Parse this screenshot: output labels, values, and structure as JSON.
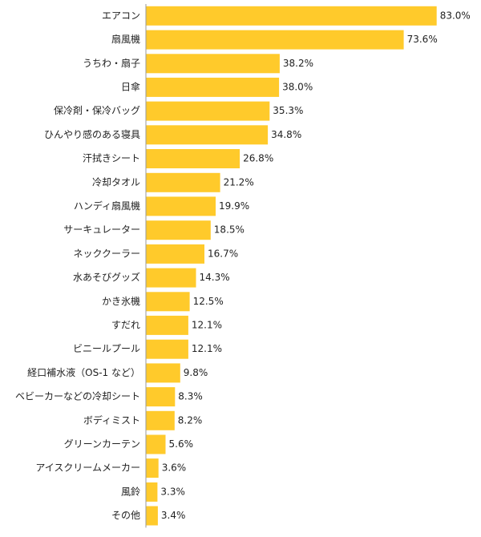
{
  "chart_data": {
    "type": "bar",
    "orientation": "horizontal",
    "categories": [
      "エアコン",
      "扇風機",
      "うちわ・扇子",
      "日傘",
      "保冷剤・保冷バッグ",
      "ひんやり感のある寝具",
      "汗拭きシート",
      "冷却タオル",
      "ハンディ扇風機",
      "サーキュレーター",
      "ネッククーラー",
      "水あそびグッズ",
      "かき氷機",
      "すだれ",
      "ビニールプール",
      "経口補水液（OS-1 など）",
      "ベビーカーなどの冷却シート",
      "ボディミスト",
      "グリーンカーテン",
      "アイスクリームメーカー",
      "風鈴",
      "その他"
    ],
    "values": [
      83.0,
      73.6,
      38.2,
      38.0,
      35.3,
      34.8,
      26.8,
      21.2,
      19.9,
      18.5,
      16.7,
      14.3,
      12.5,
      12.1,
      12.1,
      9.8,
      8.3,
      8.2,
      5.6,
      3.6,
      3.3,
      3.4
    ],
    "value_labels": [
      "83.0%",
      "73.6%",
      "38.2%",
      "38.0%",
      "35.3%",
      "34.8%",
      "26.8%",
      "21.2%",
      "19.9%",
      "18.5%",
      "16.7%",
      "14.3%",
      "12.5%",
      "12.1%",
      "12.1%",
      "9.8%",
      "8.3%",
      "8.2%",
      "5.6%",
      "3.6%",
      "3.3%",
      "3.4%"
    ],
    "xlim": [
      0,
      100
    ],
    "grid": false,
    "bar_color": "#FFCA2B",
    "axis_color": "#999999"
  }
}
